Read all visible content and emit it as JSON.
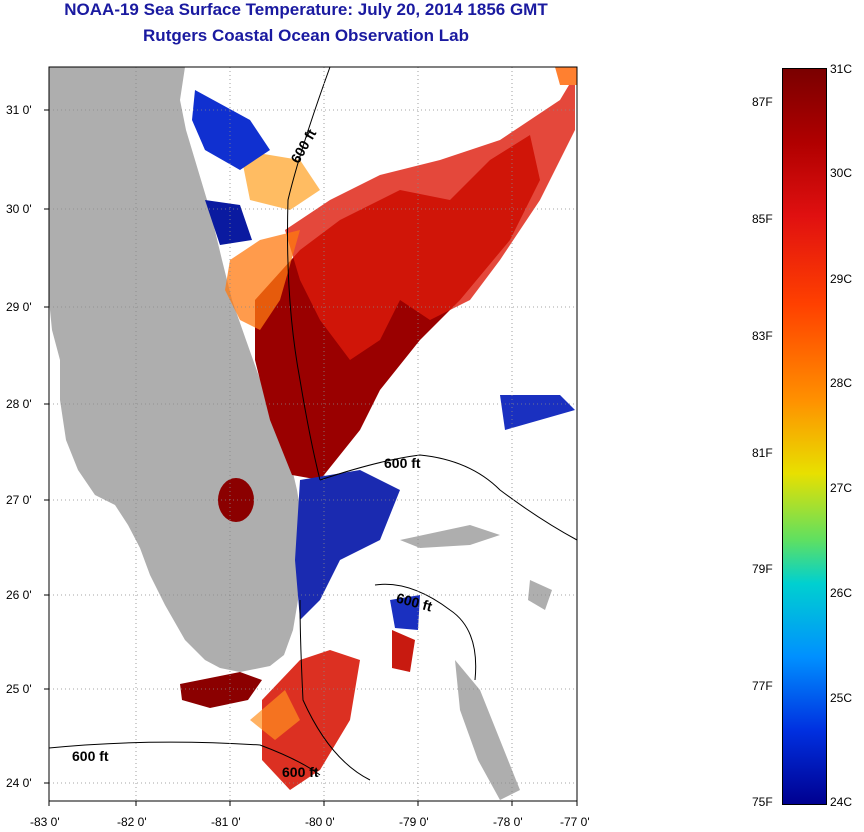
{
  "title": "NOAA-19 Sea Surface Temperature:  July 20, 2014 1856 GMT",
  "subtitle": "Rutgers Coastal Ocean Observation Lab",
  "map": {
    "lat_ticks": [
      "31 0'",
      "30 0'",
      "29 0'",
      "28 0'",
      "27 0'",
      "26 0'",
      "25 0'",
      "24 0'"
    ],
    "lon_ticks": [
      "-83 0'",
      "-82 0'",
      "-81 0'",
      "-80 0'",
      "-79 0'",
      "-78 0'",
      "-77 0'"
    ],
    "lat_range": [
      23.85,
      31.45
    ],
    "lon_range": [
      -83.0,
      -76.85
    ],
    "isobath_labels": [
      "600 ft",
      "600 ft",
      "600 ft",
      "600 ft",
      "600 ft"
    ],
    "colors": {
      "land": "#aeaeae",
      "cloud_mask": "#ffffff",
      "grid": "#888888"
    }
  },
  "colorbar": {
    "celsius_labels": [
      "31C",
      "30C",
      "29C",
      "28C",
      "27C",
      "26C",
      "25C",
      "24C"
    ],
    "fahrenheit_labels": [
      "87F",
      "85F",
      "83F",
      "81F",
      "79F",
      "77F",
      "75F"
    ],
    "range_c": [
      24,
      31
    ],
    "colors": [
      "#7a0000",
      "#e01010",
      "#ff9000",
      "#e8e000",
      "#00d0d0",
      "#0090ff",
      "#000090"
    ]
  }
}
